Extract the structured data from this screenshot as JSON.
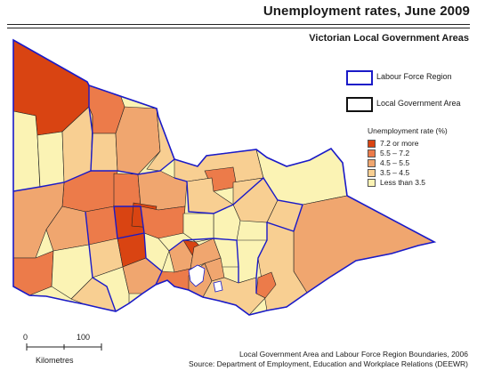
{
  "title": "Unemployment rates, June 2009",
  "subtitle": "Victorian Local Government Areas",
  "legend_boundaries": {
    "region_label": "Labour Force Region",
    "region_color": "#1a1ac8",
    "lga_label": "Local Government Area",
    "lga_color": "#111111"
  },
  "classes": {
    "title": "Unemployment rate (%)",
    "items": [
      {
        "label": "7.2 or more",
        "color": "#d94412"
      },
      {
        "label": "5.5 – 7.2",
        "color": "#ec7b4a"
      },
      {
        "label": "4.5 – 5.5",
        "color": "#f0a66f"
      },
      {
        "label": "3.5 – 4.5",
        "color": "#f8cf92"
      },
      {
        "label": "Less than 3.5",
        "color": "#fbf3b4"
      }
    ]
  },
  "scale": {
    "start_label": "0",
    "end_label": "100",
    "unit_label": "Kilometres"
  },
  "footer": {
    "line1": "Local Government Area and Labour Force Region Boundaries, 2006",
    "line2": "Source: Department of Employment, Education and Workplace Relations (DEEWR)"
  }
}
